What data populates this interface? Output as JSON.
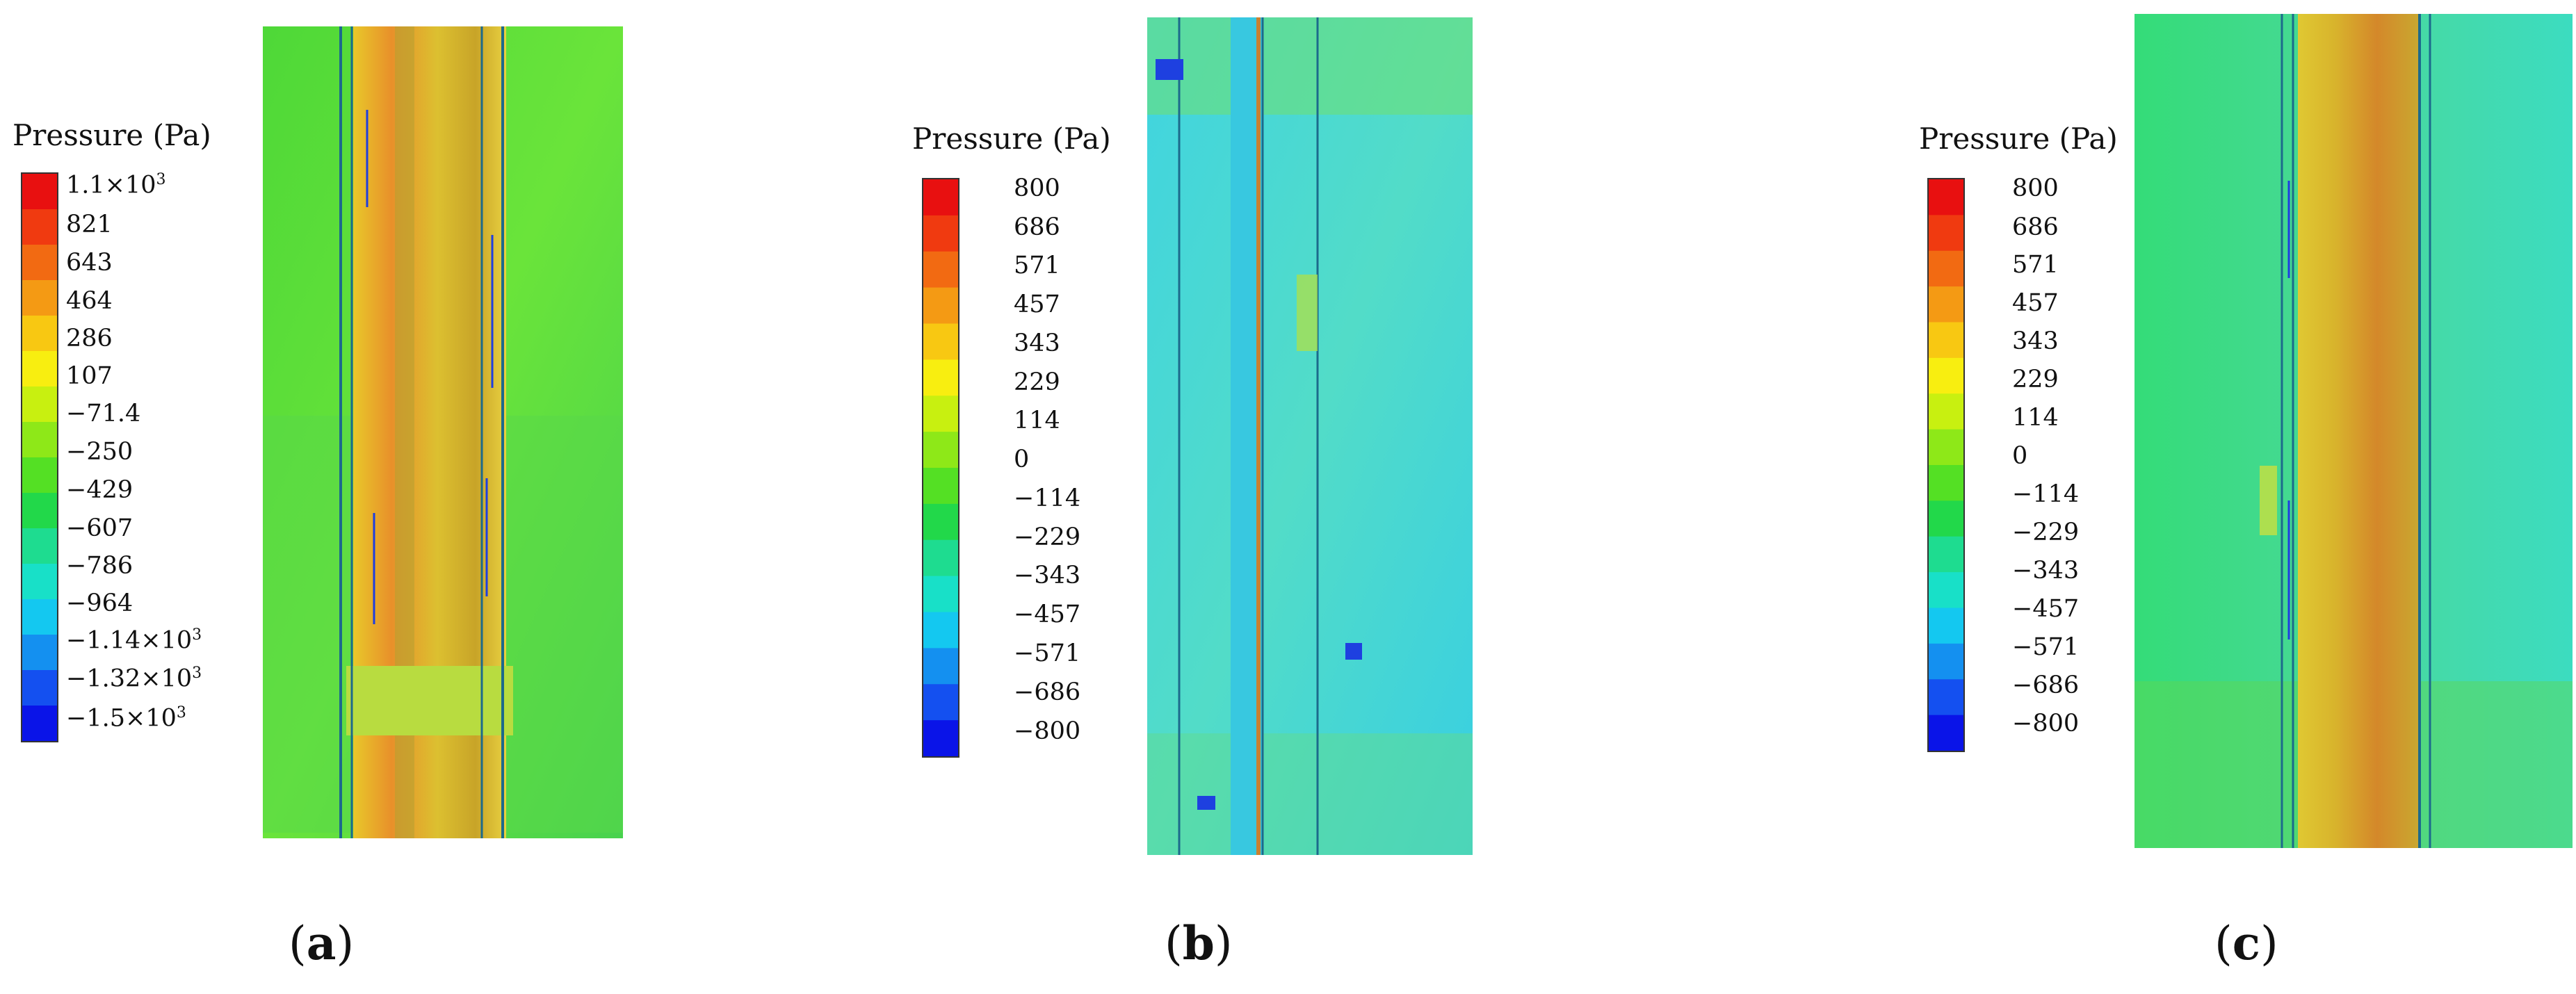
{
  "panels": [
    {
      "id": "a",
      "legend_title": "Pressure (Pa)",
      "ticks": [
        "1.1×10³",
        "821",
        "643",
        "464",
        "286",
        "107",
        "−71.4",
        "−250",
        "−429",
        "−607",
        "−786",
        "−964",
        "−1.14×10³",
        "−1.32×10³",
        "−1.5×10³"
      ],
      "caption_open": "(",
      "caption_letter": "a",
      "caption_close": ")",
      "field_colors": {
        "background": "#5ee03a",
        "tube": "#e6c02a",
        "tube_hot": "#e8862a",
        "lines": "#1c6a8c"
      }
    },
    {
      "id": "b",
      "legend_title": "Pressure (Pa)",
      "ticks": [
        "800",
        "686",
        "571",
        "457",
        "343",
        "229",
        "114",
        "0",
        "−114",
        "−229",
        "−343",
        "−457",
        "−571",
        "−686",
        "−800"
      ],
      "caption_open": "(",
      "caption_letter": "b",
      "caption_close": ")",
      "field_colors": {
        "background": "#3fd8dd",
        "tube": "#d4b430",
        "tube_hot": "#c98030",
        "lines": "#1c6a8c"
      }
    },
    {
      "id": "c",
      "legend_title": "Pressure (Pa)",
      "ticks": [
        "800",
        "686",
        "571",
        "457",
        "343",
        "229",
        "114",
        "0",
        "−114",
        "−229",
        "−343",
        "−457",
        "−571",
        "−686",
        "−800"
      ],
      "caption_open": "(",
      "caption_letter": "c",
      "caption_close": ")",
      "field_colors": {
        "background": "#38dfa0",
        "tube": "#dcbb2c",
        "tube_hot": "#d07f2a",
        "lines": "#1c6a8c"
      }
    }
  ],
  "colorbar_colors": [
    "#e81010",
    "#f03a10",
    "#f26a12",
    "#f49a14",
    "#f8c812",
    "#f8ee10",
    "#c8f010",
    "#8ee818",
    "#54e024",
    "#22d84a",
    "#1edc90",
    "#18e0c8",
    "#14c8f0",
    "#1490f0",
    "#1450f0",
    "#0a14e8"
  ]
}
